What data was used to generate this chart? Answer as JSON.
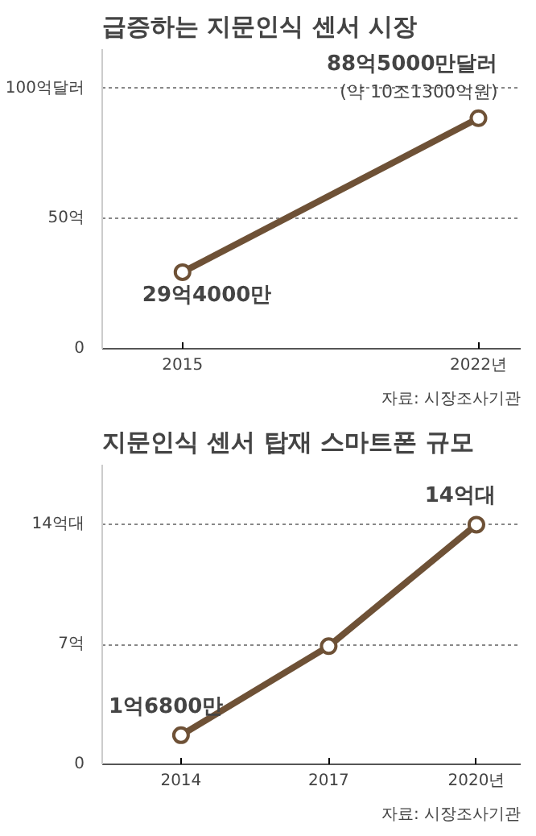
{
  "chart_data": [
    {
      "type": "line",
      "title": "급증하는 지문인식 센서 시장",
      "x": [
        2015,
        2022
      ],
      "series": [
        {
          "color": "#6e5136",
          "values": [
            29.4,
            88.5
          ]
        }
      ],
      "xlim": [
        2013.1,
        2023
      ],
      "xticks": [
        2015,
        {
          "value": 2022,
          "label": "2022년"
        }
      ],
      "ylim": [
        0,
        115
      ],
      "yticks": [
        0,
        {
          "value": 50,
          "label": "50억"
        },
        {
          "value": 100,
          "label": "100억달러"
        }
      ],
      "grid": "y",
      "marker": "circle",
      "line_style": "solid",
      "annotations": [
        {
          "text": "29억4000만",
          "x": 2015,
          "y": 29.4
        },
        {
          "text": "88억5000만달러",
          "x": 2022,
          "y": 88.5
        },
        {
          "text": "(약 10조1300억원)",
          "x": 2022,
          "y": 88.5
        },
        "자료: 시장조사기관"
      ]
    },
    {
      "type": "line",
      "title": "지문인식 센서 탑재 스마트폰 규모",
      "x": [
        2014,
        2017,
        2020
      ],
      "series": [
        {
          "color": "#6e5136",
          "values": [
            1.7,
            6.9,
            14
          ]
        }
      ],
      "xlim": [
        2012.4,
        2020.9
      ],
      "xticks": [
        2014,
        2017,
        {
          "value": 2020,
          "label": "2020년"
        }
      ],
      "ylim": [
        0,
        17.5
      ],
      "yticks": [
        0,
        {
          "value": 7,
          "label": "7억"
        },
        {
          "value": 14,
          "label": "14억대"
        }
      ],
      "grid": "y",
      "marker": "circle",
      "line_style": "solid",
      "annotations": [
        {
          "text": "1억6800만",
          "x": 2014,
          "y": 1.7
        },
        {
          "text": "14억대",
          "x": 2020,
          "y": 14
        },
        "자료: 시장조사기관"
      ]
    }
  ]
}
